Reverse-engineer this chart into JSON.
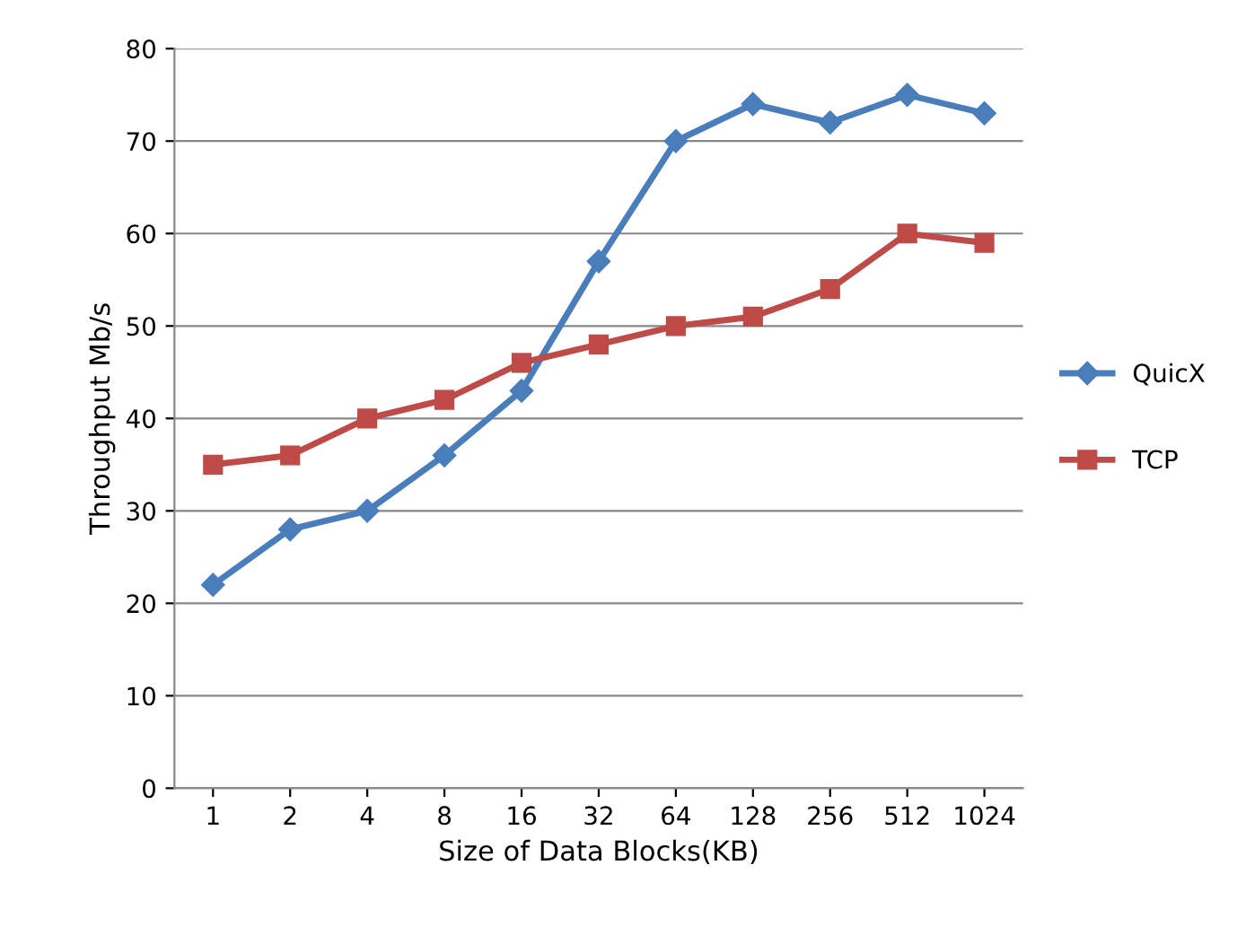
{
  "chart_data": {
    "type": "line",
    "xlabel": "Size of Data Blocks(KB)",
    "ylabel": "Throughput Mb/s",
    "categories": [
      "1",
      "2",
      "4",
      "8",
      "16",
      "32",
      "64",
      "128",
      "256",
      "512",
      "1024"
    ],
    "series": [
      {
        "name": "QuicX",
        "color": "#4a7ebb",
        "marker": "diamond",
        "values": [
          22,
          28,
          30,
          36,
          43,
          57,
          70,
          74,
          72,
          75,
          73
        ]
      },
      {
        "name": "TCP",
        "color": "#be4b48",
        "marker": "square",
        "values": [
          35,
          36,
          40,
          42,
          46,
          48,
          50,
          51,
          54,
          60,
          59
        ]
      }
    ],
    "ylim": [
      0,
      80
    ],
    "yticks": [
      0,
      10,
      20,
      30,
      40,
      50,
      60,
      70,
      80
    ],
    "grid": "y",
    "legend": "right"
  }
}
